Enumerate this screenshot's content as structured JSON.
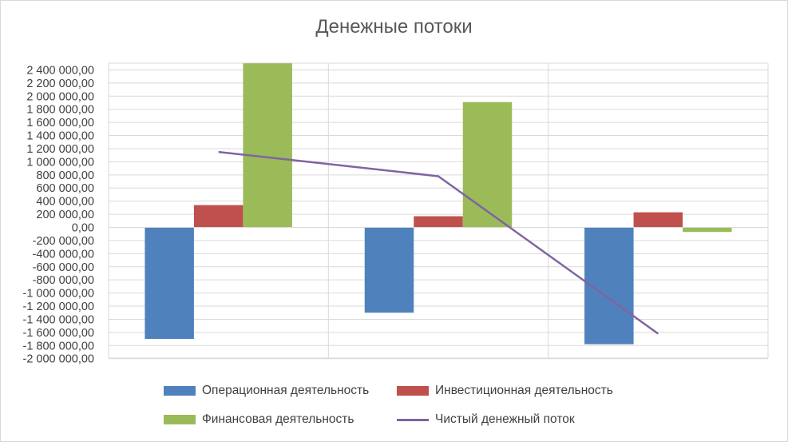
{
  "chart_data": {
    "type": "bar+line",
    "title": "Денежные потоки",
    "categories": [
      "",
      "",
      ""
    ],
    "ylim": [
      -2000000,
      2500000
    ],
    "yticks": [
      "2 400 000,00",
      "2 200 000,00",
      "2 000 000,00",
      "1 800 000,00",
      "1 600 000,00",
      "1 400 000,00",
      "1 200 000,00",
      "1 000 000,00",
      "800 000,00",
      "600 000,00",
      "400 000,00",
      "200 000,00",
      "0,00",
      "-200 000,00",
      "-400 000,00",
      "-600 000,00",
      "-800 000,00",
      "-1 000 000,00",
      "-1 200 000,00",
      "-1 400 000,00",
      "-1 600 000,00",
      "-1 800 000,00",
      "-2 000 000,00"
    ],
    "series": [
      {
        "name": "Операционная деятельность",
        "type": "bar",
        "color": "#4F81BD",
        "values": [
          -1700000,
          -1300000,
          -1780000
        ]
      },
      {
        "name": "Инвестиционная деятельность",
        "type": "bar",
        "color": "#C0504D",
        "values": [
          340000,
          170000,
          230000
        ]
      },
      {
        "name": "Финансовая деятельность",
        "type": "bar",
        "color": "#9BBB59",
        "values": [
          2500000,
          1910000,
          -70000
        ]
      },
      {
        "name": "Чистый денежный поток",
        "type": "line",
        "color": "#8064A2",
        "values": [
          1150000,
          780000,
          -1620000
        ]
      }
    ],
    "grid": true,
    "legend": "bottom"
  }
}
